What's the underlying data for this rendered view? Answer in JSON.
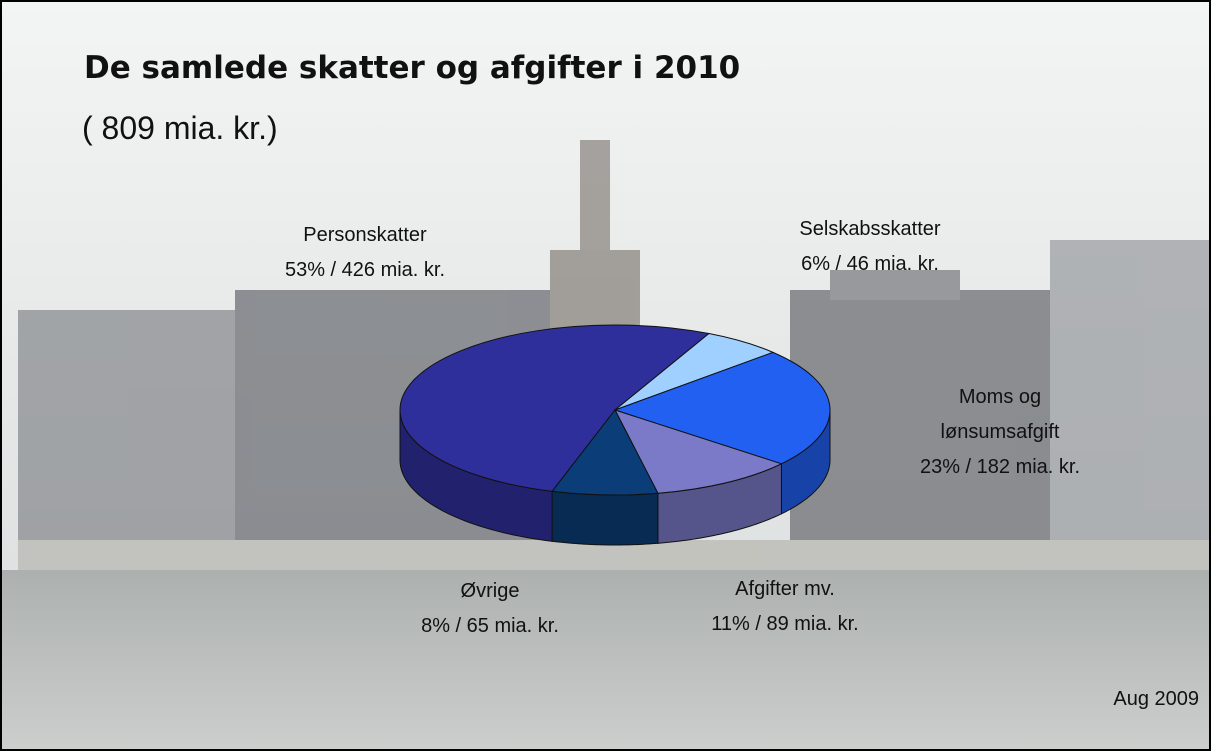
{
  "chart_data": {
    "type": "pie",
    "title": "De samlede skatter og afgifter i 2010",
    "subtitle": "( 809 mia. kr.)",
    "note": "Aug 2009",
    "categories": [
      "Personskatter",
      "Selskabsskatter",
      "Moms og lønsumsafgift",
      "Afgifter mv.",
      "Øvrige"
    ],
    "values": [
      53,
      6,
      23,
      11,
      8
    ],
    "value_labels": [
      "53% / 426 mia. kr.",
      "6% / 46 mia. kr.",
      "23% / 182 mia. kr.",
      "11% / 89 mia. kr.",
      "8% / 65 mia. kr."
    ],
    "colors": [
      "#2f2f9c",
      "#9fd0ff",
      "#2160f0",
      "#7a7ac8",
      "#0b3d78"
    ]
  }
}
